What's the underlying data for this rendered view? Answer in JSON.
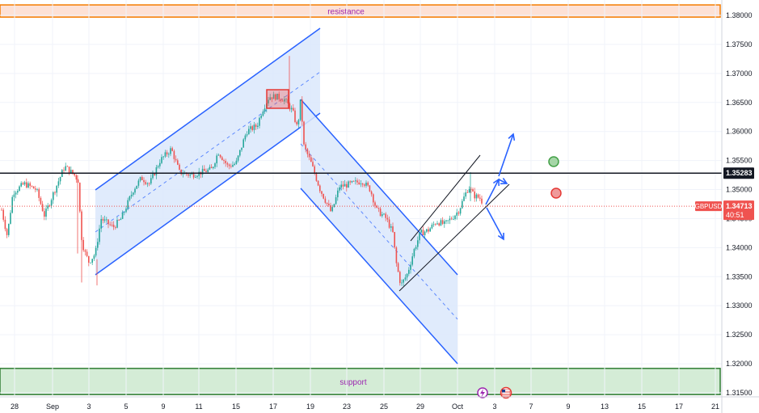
{
  "chart_data": {
    "type": "candlestick",
    "symbol": "GBPUSD",
    "countdown": "40:51",
    "current_price": 1.34713,
    "level_line": 1.35283,
    "resistance_zone": {
      "label": "resistance",
      "from": 1.3797,
      "to": 1.3818
    },
    "support_zone": {
      "label": "support",
      "from": 1.3147,
      "to": 1.3192
    },
    "ylim": [
      1.3139,
      1.3825
    ],
    "y_ticks": [
      1.38,
      1.375,
      1.37,
      1.365,
      1.36,
      1.355,
      1.35,
      1.345,
      1.34,
      1.335,
      1.33,
      1.325,
      1.32,
      1.315
    ],
    "x_ticks": [
      "28",
      "Sep",
      "3",
      "5",
      "9",
      "11",
      "15",
      "17",
      "19",
      "23",
      "25",
      "29",
      "Oct",
      "3",
      "7",
      "9",
      "13",
      "15",
      "17",
      "21"
    ],
    "colors": {
      "up": "#26a69a",
      "down": "#ef5350",
      "channel": "#2962ff",
      "channel_fill": "#dbe8fb",
      "resistance_fill": "#fde1d6",
      "support_fill": "#d4ecd6"
    },
    "markers": [
      "bullish-circle-green",
      "bearish-circle-red"
    ],
    "icons": [
      "lightning-event-icon",
      "us-flag-event-icon"
    ]
  }
}
